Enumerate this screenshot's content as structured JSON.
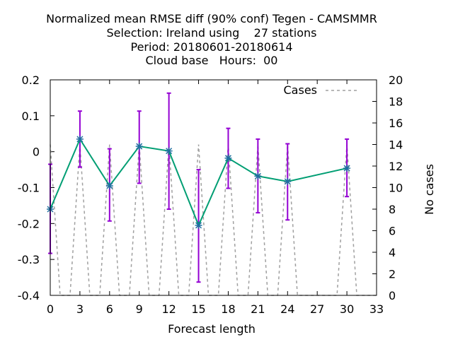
{
  "chart_data": {
    "type": "line",
    "title_lines": [
      "Normalized mean RMSE diff (90% conf) Tegen - CAMSMMR",
      "Selection: Ireland using    27 stations",
      "Period: 20180601-20180614",
      "Cloud base   Hours:  00"
    ],
    "xlabel": "Forecast length",
    "ylabel": "",
    "y2label": "No cases",
    "xlim": [
      0,
      33
    ],
    "ylim": [
      -0.4,
      0.2
    ],
    "y2lim": [
      0,
      20
    ],
    "xticks": [
      0,
      3,
      6,
      9,
      12,
      15,
      18,
      21,
      24,
      27,
      30,
      33
    ],
    "yticks": [
      -0.4,
      -0.3,
      -0.2,
      -0.1,
      0,
      0.1,
      0.2
    ],
    "yticklabels": [
      "-0.4",
      "-0.3",
      "-0.2",
      "-0.1",
      "0",
      "0.1",
      "0.2"
    ],
    "y2ticks": [
      0,
      2,
      4,
      6,
      8,
      10,
      12,
      14,
      16,
      18,
      20
    ],
    "legend_position": "top-right",
    "colors": {
      "diff_line": "#009e73",
      "errorbar": "#9400d3",
      "cases": "#a0a0a0",
      "axes": "#000000"
    },
    "series": [
      {
        "kind": "diff",
        "x": [
          0,
          3,
          6,
          9,
          12,
          15,
          18,
          21,
          24,
          30
        ],
        "y": [
          -0.16,
          0.035,
          -0.095,
          0.015,
          0.002,
          -0.205,
          -0.018,
          -0.068,
          -0.083,
          -0.046
        ],
        "ylow": [
          -0.283,
          -0.043,
          -0.193,
          -0.088,
          -0.16,
          -0.363,
          -0.102,
          -0.17,
          -0.19,
          -0.125
        ],
        "yhigh": [
          -0.035,
          0.113,
          0.008,
          0.113,
          0.163,
          -0.05,
          0.065,
          0.035,
          0.022,
          0.035
        ]
      },
      {
        "kind": "cases",
        "name": "Cases",
        "x": [
          0,
          1,
          2,
          3,
          4,
          5,
          6,
          7,
          8,
          9,
          10,
          11,
          12,
          13,
          14,
          15,
          16,
          17,
          18,
          19,
          20,
          21,
          22,
          23,
          24,
          25,
          26,
          27,
          28,
          29,
          30,
          31,
          32,
          33
        ],
        "y": [
          14,
          0,
          0,
          14,
          0,
          0,
          14,
          0,
          0,
          14,
          0,
          0,
          14,
          0,
          0,
          14,
          0,
          0,
          14,
          0,
          0,
          14,
          0,
          0,
          14,
          0,
          0,
          0,
          0,
          0,
          14,
          0,
          0,
          0
        ]
      }
    ]
  }
}
